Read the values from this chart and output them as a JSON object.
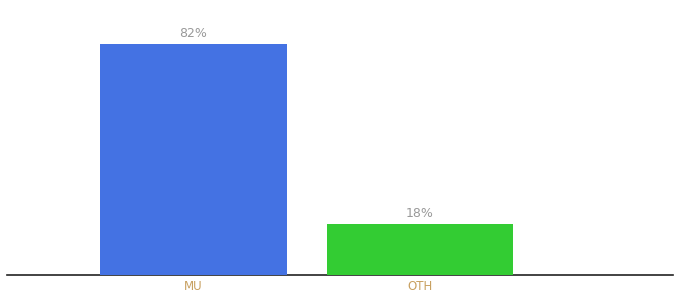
{
  "categories": [
    "MU",
    "OTH"
  ],
  "values": [
    82,
    18
  ],
  "bar_colors": [
    "#4472e3",
    "#33cc33"
  ],
  "label_texts": [
    "82%",
    "18%"
  ],
  "label_fontsize": 9,
  "tick_fontsize": 8.5,
  "background_color": "#ffffff",
  "ylim": [
    0,
    95
  ],
  "bar_width": 0.28,
  "x_positions": [
    0.28,
    0.62
  ],
  "xlim": [
    0.0,
    1.0
  ],
  "tick_color": "#c8a060",
  "label_color": "#999999",
  "spine_color": "#222222"
}
